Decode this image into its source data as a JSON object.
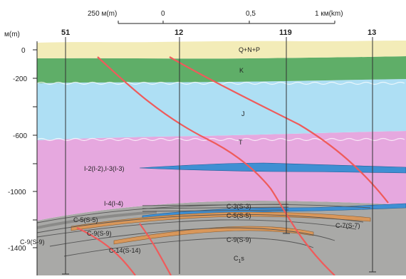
{
  "scale_bar": {
    "left_value": "250 м(m)",
    "zero": "0",
    "mid": "0,5",
    "right_value": "1 км(km)"
  },
  "depth_axis": {
    "unit": "м(m)",
    "ticks": [
      "0",
      "-200",
      "-600",
      "-1000",
      "-1400"
    ]
  },
  "wells": [
    "51",
    "12",
    "119",
    "13"
  ],
  "layers": {
    "qnp": "Q+N+P",
    "k": "K",
    "j": "J",
    "t": "T",
    "c1s_main": "C",
    "c1s_sub": "1",
    "c1s_tail": "s"
  },
  "bed_labels": {
    "i2": "I-2(I-2),I-3(I-3)",
    "i4": "I-4(I-4)",
    "c3": "C-3(S-3)",
    "c5_right": "C-5(S-5)",
    "c5_left": "C-5(S-5)",
    "c7": "C-7(S-7)",
    "c9_left": "C-9(S-9)",
    "c9_mid": "C-9(S-9)",
    "c9_right": "C-9(S-9)",
    "c14": "C-14(S-14)"
  },
  "colors": {
    "qnp": "#f3ecb8",
    "k": "#5fae68",
    "j": "#aedff4",
    "t": "#e6a8df",
    "basement": "#a9a9a7",
    "bed_blue": "#3f8fd3",
    "bed_orange": "#d9975a",
    "fault": "#ef5b5b"
  }
}
